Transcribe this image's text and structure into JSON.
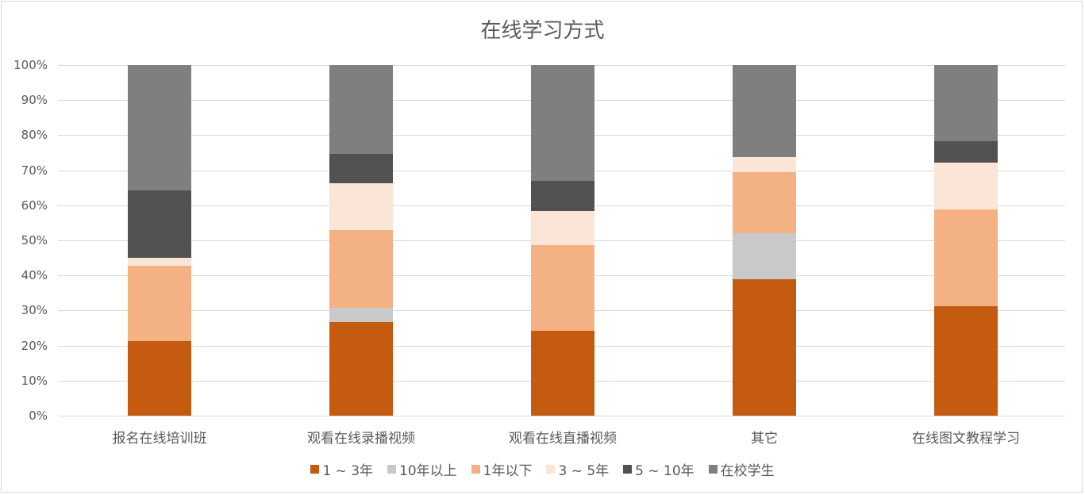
{
  "chart_data": {
    "type": "bar",
    "stacked": "percent",
    "title": "在线学习方式",
    "xlabel": "",
    "ylabel": "",
    "ylim": [
      0,
      100
    ],
    "yticks": [
      "0%",
      "10%",
      "20%",
      "30%",
      "40%",
      "50%",
      "60%",
      "70%",
      "80%",
      "90%",
      "100%"
    ],
    "grid": true,
    "legend_position": "bottom",
    "categories": [
      "报名在线培训班",
      "观看在线录播视频",
      "观看在线直播视频",
      "其它",
      "在线图文教程学习"
    ],
    "series": [
      {
        "name": "1 ~ 3年",
        "color": "#C55A11",
        "values": [
          21.3,
          26.7,
          24.2,
          38.9,
          31.2
        ]
      },
      {
        "name": "10年以上",
        "color": "#C9C9C9",
        "values": [
          0,
          4.1,
          0,
          13.1,
          0
        ]
      },
      {
        "name": "1年以下",
        "color": "#F4B183",
        "values": [
          21.5,
          22.1,
          24.4,
          17.5,
          27.6
        ]
      },
      {
        "name": "3 ~ 5年",
        "color": "#FBE5D6",
        "values": [
          2.2,
          13.4,
          9.8,
          4.3,
          13.4
        ]
      },
      {
        "name": "5 ~ 10年",
        "color": "#525252",
        "values": [
          19.3,
          8.4,
          8.6,
          0,
          6.1
        ]
      },
      {
        "name": "在校学生",
        "color": "#7F7F7F",
        "values": [
          35.7,
          25.3,
          33.0,
          26.2,
          21.7
        ]
      }
    ]
  }
}
